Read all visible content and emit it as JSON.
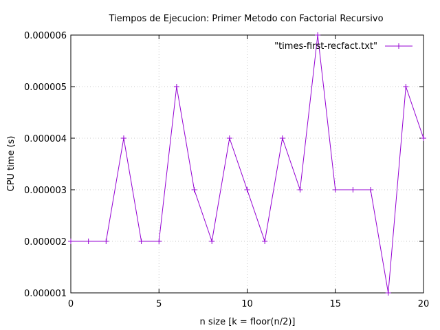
{
  "chart_data": {
    "type": "line",
    "title": "Tiempos de Ejecucion: Primer Metodo con Factorial Recursivo",
    "xlabel": "n size [k = floor(n/2)]",
    "ylabel": "CPU time (s)",
    "xlim": [
      0,
      20
    ],
    "ylim": [
      1e-06,
      6e-06
    ],
    "x_ticks": [
      0,
      5,
      10,
      15,
      20
    ],
    "x_tick_labels": [
      "0",
      "5",
      "10",
      "15",
      "20"
    ],
    "y_ticks": [
      1e-06,
      2e-06,
      3e-06,
      4e-06,
      5e-06,
      6e-06
    ],
    "y_tick_labels": [
      "0.000001",
      "0.000002",
      "0.000003",
      "0.000004",
      "0.000005",
      "0.000006"
    ],
    "grid": true,
    "legend_position": "top-right",
    "marker": "plus",
    "series": [
      {
        "name": "\"times-first-recfact.txt\"",
        "color": "#9400d3",
        "x": [
          0,
          1,
          2,
          3,
          4,
          5,
          6,
          7,
          8,
          9,
          10,
          11,
          12,
          13,
          14,
          15,
          16,
          17,
          18,
          19,
          20
        ],
        "y": [
          2e-06,
          2e-06,
          2e-06,
          4e-06,
          2e-06,
          2e-06,
          5e-06,
          3e-06,
          2e-06,
          4e-06,
          3e-06,
          2e-06,
          4e-06,
          3e-06,
          6e-06,
          3e-06,
          3e-06,
          3e-06,
          1e-06,
          5e-06,
          4e-06
        ]
      }
    ]
  }
}
